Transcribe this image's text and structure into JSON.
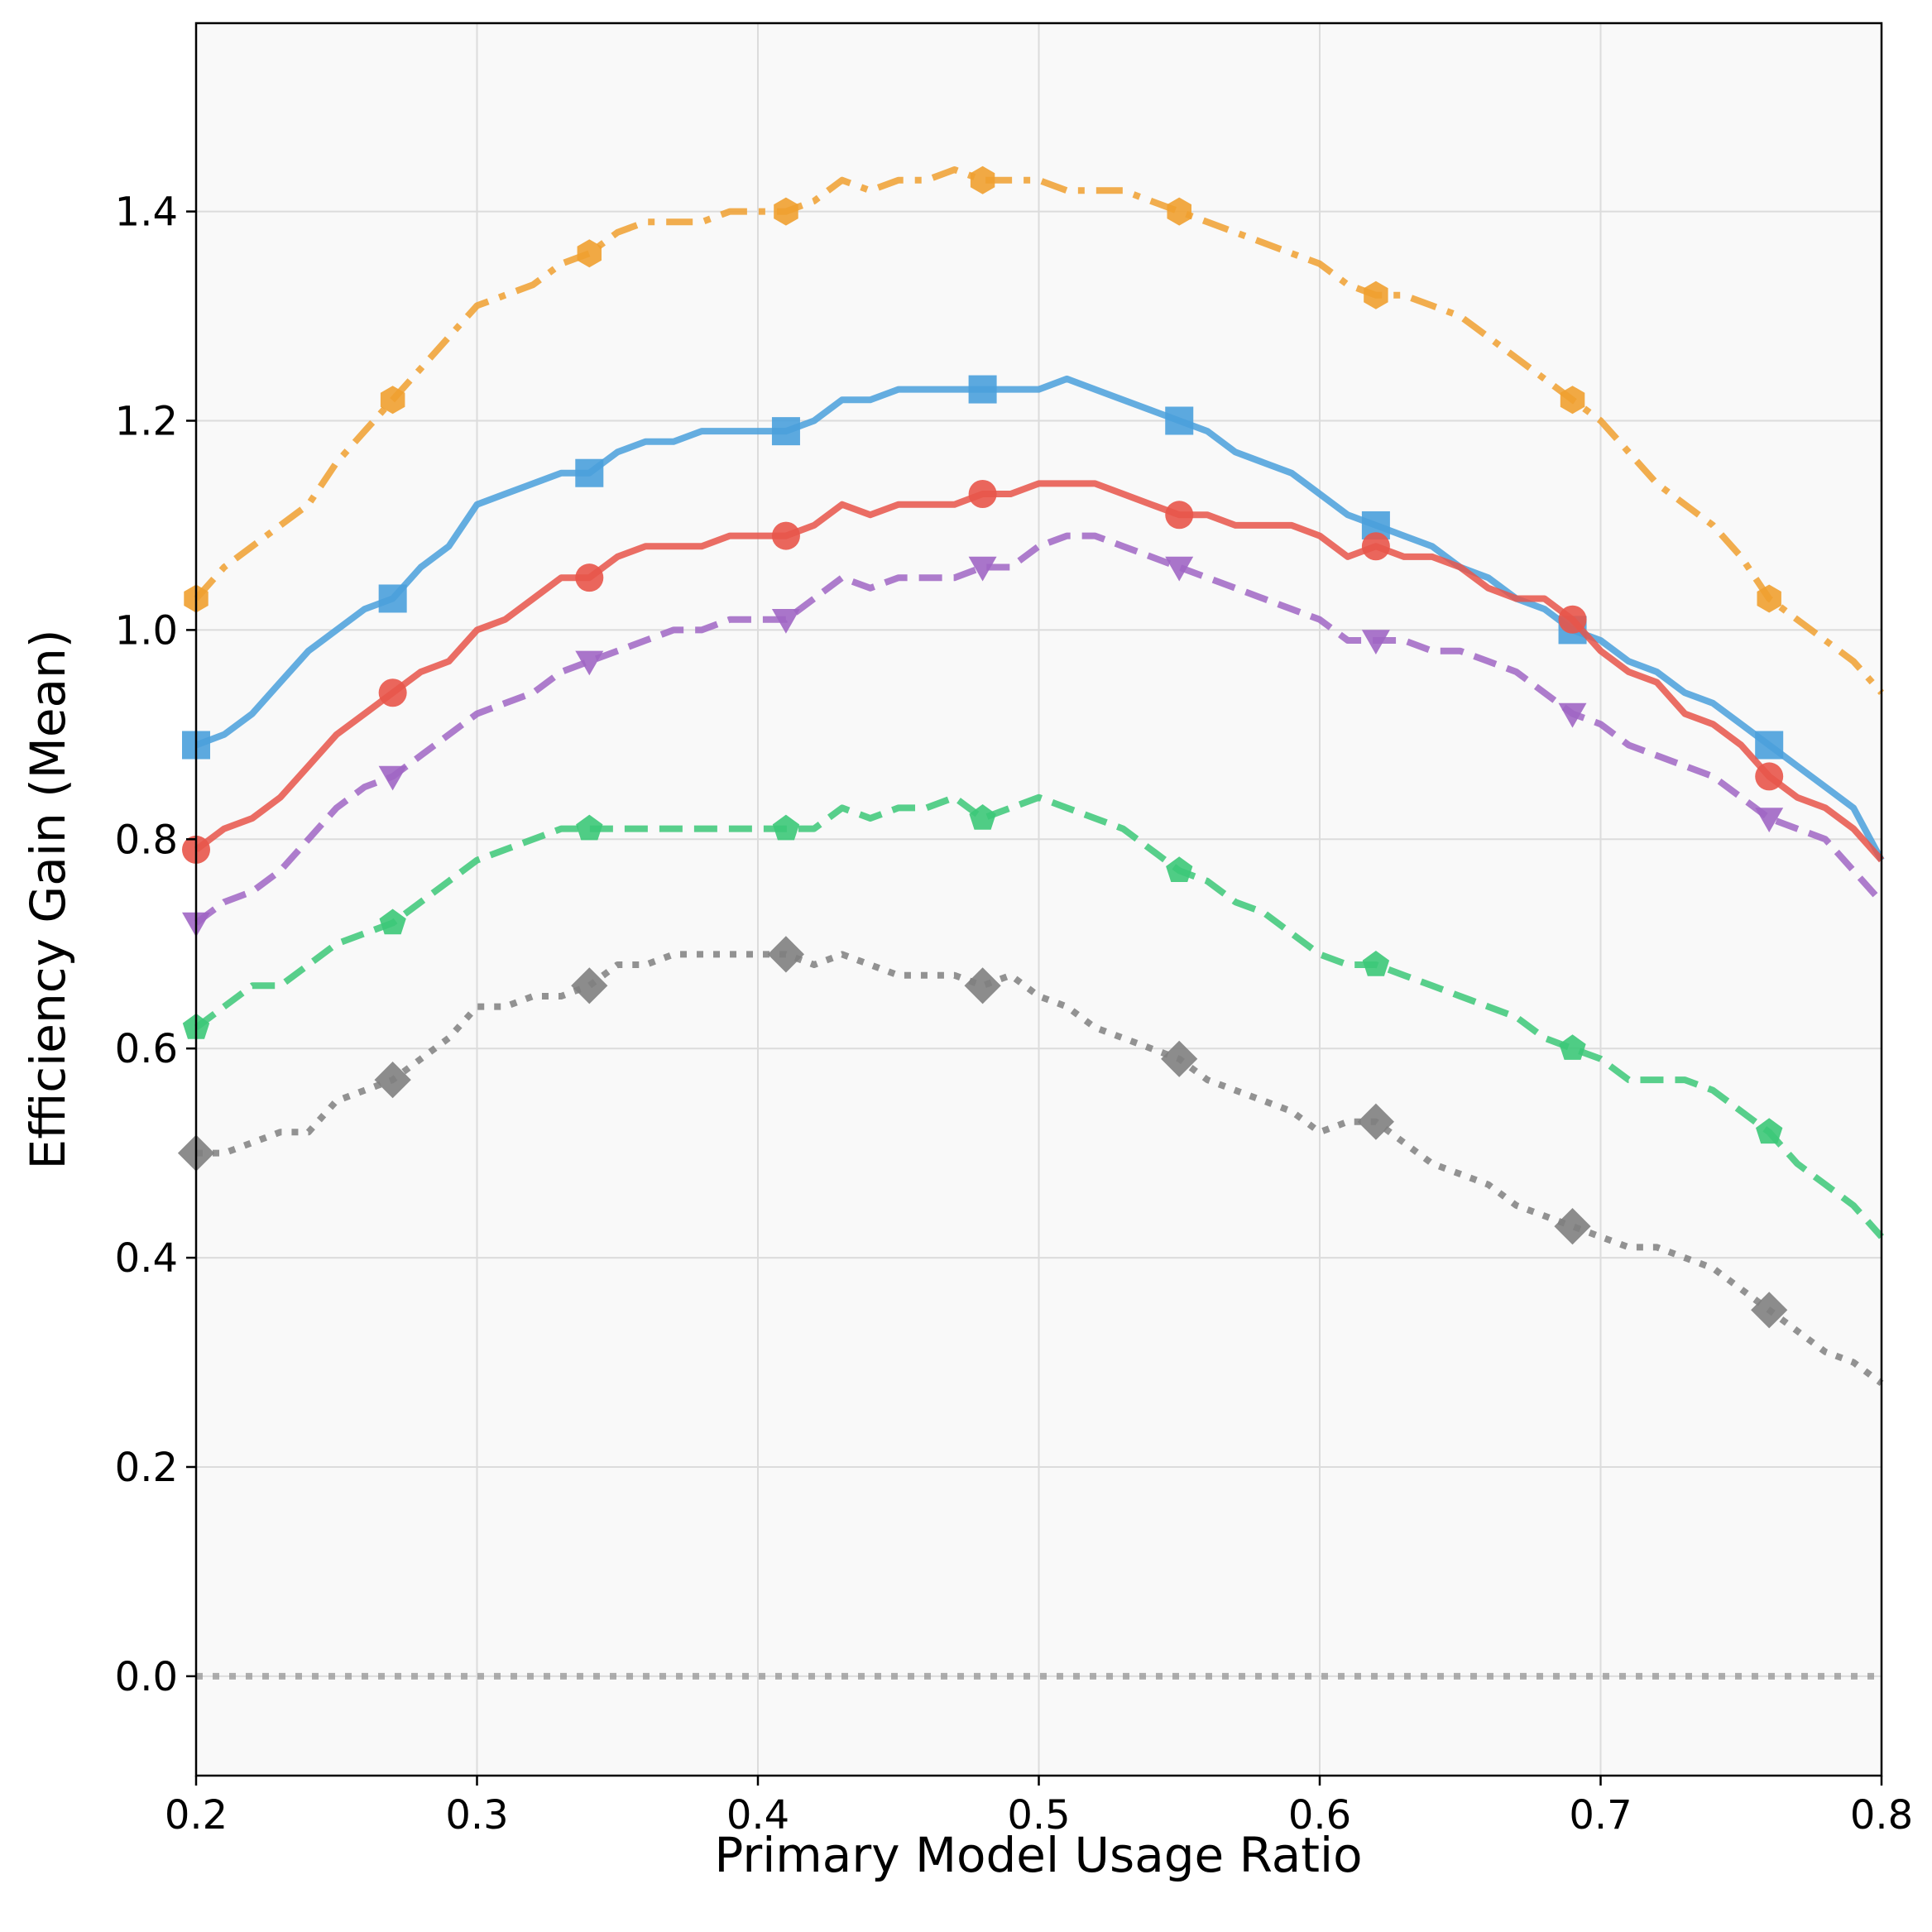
{
  "chart_data": {
    "type": "line",
    "title": "",
    "xlabel": "Primary Model Usage Ratio",
    "ylabel": "Efficiency Gain (Mean)",
    "xlim": [
      0.2,
      0.8
    ],
    "ylim": [
      -0.095,
      1.58
    ],
    "grid": true,
    "x_ticks": [
      "0.2",
      "0.3",
      "0.4",
      "0.5",
      "0.6",
      "0.7",
      "0.8"
    ],
    "y_ticks": [
      "0.0",
      "0.2",
      "0.4",
      "0.6",
      "0.8",
      "1.0",
      "1.2",
      "1.4"
    ],
    "x": [
      0.2,
      0.21,
      0.22,
      0.23,
      0.24,
      0.25,
      0.26,
      0.27,
      0.28,
      0.29,
      0.3,
      0.31,
      0.32,
      0.33,
      0.34,
      0.35,
      0.36,
      0.37,
      0.38,
      0.39,
      0.4,
      0.41,
      0.42,
      0.43,
      0.44,
      0.45,
      0.46,
      0.47,
      0.48,
      0.49,
      0.5,
      0.51,
      0.52,
      0.53,
      0.54,
      0.55,
      0.56,
      0.57,
      0.58,
      0.59,
      0.6,
      0.61,
      0.62,
      0.63,
      0.64,
      0.65,
      0.66,
      0.67,
      0.68,
      0.69,
      0.7,
      0.71,
      0.72,
      0.73,
      0.74,
      0.75,
      0.76,
      0.77,
      0.78,
      0.79,
      0.8
    ],
    "series": [
      {
        "name": "orange-dashdot",
        "color": "#f0a030",
        "linestyle": "dashdot",
        "marker": "hexagon",
        "marker_x": [
          0.2,
          0.27,
          0.34,
          0.41,
          0.48,
          0.55,
          0.62,
          0.69,
          0.76
        ],
        "values": [
          1.03,
          1.06,
          1.08,
          1.1,
          1.12,
          1.16,
          1.19,
          1.22,
          1.25,
          1.28,
          1.31,
          1.32,
          1.33,
          1.35,
          1.36,
          1.38,
          1.39,
          1.39,
          1.39,
          1.4,
          1.4,
          1.4,
          1.41,
          1.43,
          1.42,
          1.43,
          1.43,
          1.44,
          1.43,
          1.43,
          1.43,
          1.42,
          1.42,
          1.42,
          1.41,
          1.4,
          1.39,
          1.38,
          1.37,
          1.36,
          1.35,
          1.33,
          1.32,
          1.32,
          1.31,
          1.3,
          1.28,
          1.26,
          1.24,
          1.22,
          1.2,
          1.17,
          1.14,
          1.12,
          1.1,
          1.07,
          1.03,
          1.01,
          0.99,
          0.97,
          0.94
        ]
      },
      {
        "name": "blue-solid",
        "color": "#4aa0dc",
        "linestyle": "solid",
        "marker": "square",
        "marker_x": [
          0.2,
          0.27,
          0.34,
          0.41,
          0.48,
          0.55,
          0.62,
          0.69,
          0.76
        ],
        "values": [
          0.89,
          0.9,
          0.92,
          0.95,
          0.98,
          1.0,
          1.02,
          1.03,
          1.06,
          1.08,
          1.12,
          1.13,
          1.14,
          1.15,
          1.15,
          1.17,
          1.18,
          1.18,
          1.19,
          1.19,
          1.19,
          1.19,
          1.2,
          1.22,
          1.22,
          1.23,
          1.23,
          1.23,
          1.23,
          1.23,
          1.23,
          1.24,
          1.23,
          1.22,
          1.21,
          1.2,
          1.19,
          1.17,
          1.16,
          1.15,
          1.13,
          1.11,
          1.1,
          1.09,
          1.08,
          1.06,
          1.05,
          1.03,
          1.02,
          1.0,
          0.99,
          0.97,
          0.96,
          0.94,
          0.93,
          0.91,
          0.89,
          0.87,
          0.85,
          0.83,
          0.78
        ]
      },
      {
        "name": "red-solid",
        "color": "#e8554a",
        "linestyle": "solid",
        "marker": "circle",
        "marker_x": [
          0.2,
          0.27,
          0.34,
          0.41,
          0.48,
          0.55,
          0.62,
          0.69,
          0.76
        ],
        "values": [
          0.79,
          0.81,
          0.82,
          0.84,
          0.87,
          0.9,
          0.92,
          0.94,
          0.96,
          0.97,
          1.0,
          1.01,
          1.03,
          1.05,
          1.05,
          1.07,
          1.08,
          1.08,
          1.08,
          1.09,
          1.09,
          1.09,
          1.1,
          1.12,
          1.11,
          1.12,
          1.12,
          1.12,
          1.13,
          1.13,
          1.14,
          1.14,
          1.14,
          1.13,
          1.12,
          1.11,
          1.11,
          1.1,
          1.1,
          1.1,
          1.09,
          1.07,
          1.08,
          1.07,
          1.07,
          1.06,
          1.04,
          1.03,
          1.03,
          1.01,
          0.98,
          0.96,
          0.95,
          0.92,
          0.91,
          0.89,
          0.86,
          0.84,
          0.83,
          0.81,
          0.78
        ]
      },
      {
        "name": "purple-dashed",
        "color": "#a066c4",
        "linestyle": "dashed",
        "marker": "triangle-down",
        "marker_x": [
          0.2,
          0.27,
          0.34,
          0.41,
          0.48,
          0.55,
          0.62,
          0.69,
          0.76
        ],
        "values": [
          0.72,
          0.74,
          0.75,
          0.77,
          0.8,
          0.83,
          0.85,
          0.86,
          0.88,
          0.9,
          0.92,
          0.93,
          0.94,
          0.96,
          0.97,
          0.98,
          0.99,
          1.0,
          1.0,
          1.01,
          1.01,
          1.01,
          1.03,
          1.05,
          1.04,
          1.05,
          1.05,
          1.05,
          1.06,
          1.06,
          1.08,
          1.09,
          1.09,
          1.08,
          1.07,
          1.06,
          1.05,
          1.04,
          1.03,
          1.02,
          1.01,
          0.99,
          0.99,
          0.99,
          0.98,
          0.98,
          0.97,
          0.96,
          0.94,
          0.92,
          0.91,
          0.89,
          0.88,
          0.87,
          0.86,
          0.84,
          0.82,
          0.81,
          0.8,
          0.77,
          0.74
        ]
      },
      {
        "name": "green-dashed",
        "color": "#3cc878",
        "linestyle": "dashed",
        "marker": "pentagon",
        "marker_x": [
          0.2,
          0.27,
          0.34,
          0.41,
          0.48,
          0.55,
          0.62,
          0.69,
          0.76
        ],
        "values": [
          0.62,
          0.64,
          0.66,
          0.66,
          0.68,
          0.7,
          0.71,
          0.72,
          0.74,
          0.76,
          0.78,
          0.79,
          0.8,
          0.81,
          0.81,
          0.81,
          0.81,
          0.81,
          0.81,
          0.81,
          0.81,
          0.81,
          0.81,
          0.83,
          0.82,
          0.83,
          0.83,
          0.84,
          0.82,
          0.83,
          0.84,
          0.83,
          0.82,
          0.81,
          0.79,
          0.77,
          0.76,
          0.74,
          0.73,
          0.71,
          0.69,
          0.68,
          0.68,
          0.67,
          0.66,
          0.65,
          0.64,
          0.63,
          0.61,
          0.6,
          0.59,
          0.57,
          0.57,
          0.57,
          0.56,
          0.54,
          0.52,
          0.49,
          0.47,
          0.45,
          0.42
        ]
      },
      {
        "name": "gray-dotted",
        "color": "#808080",
        "linestyle": "dotted",
        "marker": "diamond",
        "marker_x": [
          0.2,
          0.27,
          0.34,
          0.41,
          0.48,
          0.55,
          0.62,
          0.69,
          0.76
        ],
        "values": [
          0.5,
          0.5,
          0.51,
          0.52,
          0.52,
          0.55,
          0.56,
          0.57,
          0.59,
          0.61,
          0.64,
          0.64,
          0.65,
          0.65,
          0.66,
          0.68,
          0.68,
          0.69,
          0.69,
          0.69,
          0.69,
          0.69,
          0.68,
          0.69,
          0.68,
          0.67,
          0.67,
          0.67,
          0.66,
          0.67,
          0.65,
          0.64,
          0.62,
          0.61,
          0.6,
          0.59,
          0.57,
          0.56,
          0.55,
          0.54,
          0.52,
          0.53,
          0.53,
          0.51,
          0.49,
          0.48,
          0.47,
          0.45,
          0.44,
          0.43,
          0.42,
          0.41,
          0.41,
          0.4,
          0.39,
          0.37,
          0.35,
          0.33,
          0.31,
          0.3,
          0.28
        ]
      }
    ],
    "reference_line": {
      "name": "zero-baseline",
      "y": 0.0,
      "color": "#a0a0a0",
      "linestyle": "dotted"
    }
  }
}
